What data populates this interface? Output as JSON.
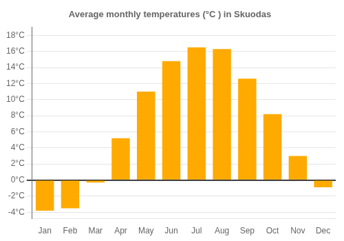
{
  "chart_data": {
    "type": "bar",
    "title": "Average monthly temperatures (°C ) in Skuodas",
    "categories": [
      "Jan",
      "Feb",
      "Mar",
      "Apr",
      "May",
      "Jun",
      "Jul",
      "Aug",
      "Sep",
      "Oct",
      "Nov",
      "Dec"
    ],
    "values": [
      -3.8,
      -3.5,
      -0.3,
      5.2,
      11.0,
      14.8,
      16.5,
      16.3,
      12.6,
      8.2,
      3.0,
      -0.9
    ],
    "color": "#FFAA00",
    "ylim": [
      -4.8,
      19.0
    ],
    "yticks": [
      {
        "value": -4,
        "label": "-4°C"
      },
      {
        "value": -2,
        "label": "-2°C"
      },
      {
        "value": 0,
        "label": "0°C"
      },
      {
        "value": 2,
        "label": "2°C"
      },
      {
        "value": 4,
        "label": "4°C"
      },
      {
        "value": 6,
        "label": "6°C"
      },
      {
        "value": 8,
        "label": "8°C"
      },
      {
        "value": 10,
        "label": "10°C"
      },
      {
        "value": 12,
        "label": "12°C"
      },
      {
        "value": 14,
        "label": "14°C"
      },
      {
        "value": 16,
        "label": "16°C"
      },
      {
        "value": 18,
        "label": "18°C"
      }
    ],
    "grid": true
  }
}
